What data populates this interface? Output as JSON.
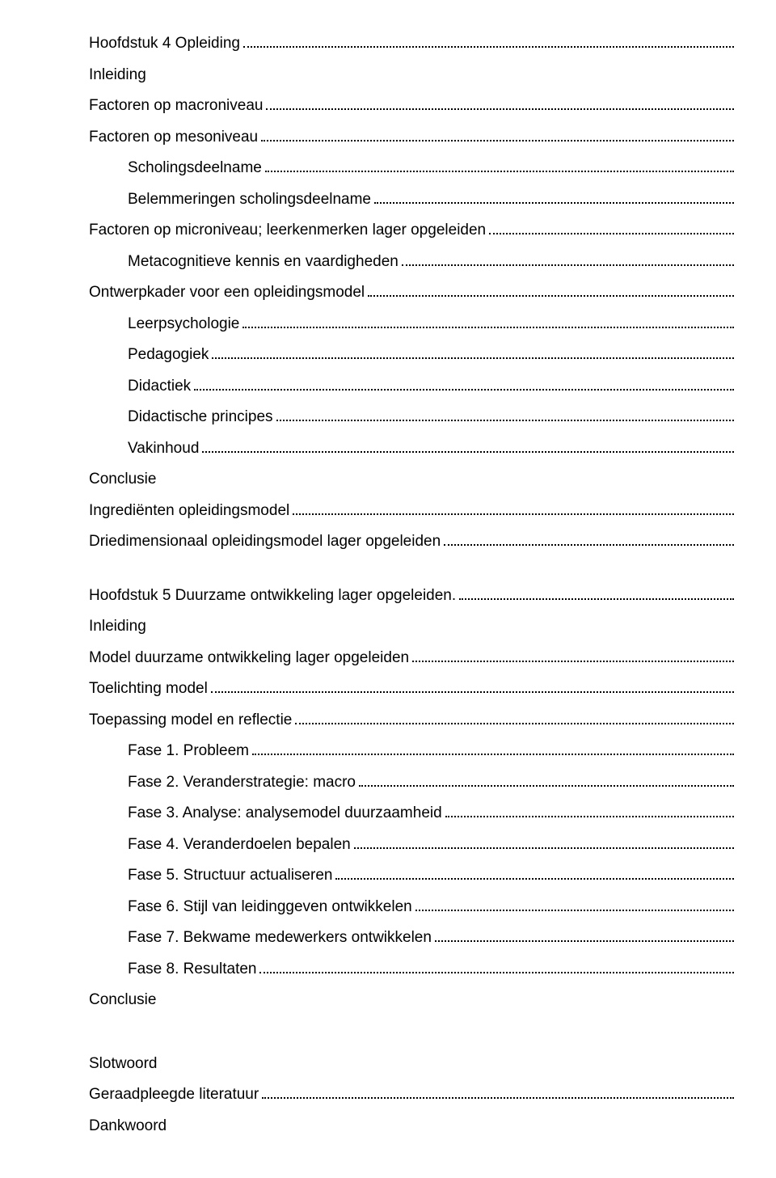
{
  "chapter4": {
    "title": "Hoofdstuk 4 Opleiding",
    "inleiding": "Inleiding",
    "macroniveau": "Factoren op macroniveau",
    "mesoniveau": "Factoren op mesoniveau",
    "scholingsdeelname": "Scholingsdeelname",
    "belemmeringen": "Belemmeringen scholingsdeelname",
    "microniveau": "Factoren op microniveau; leerkenmerken lager opgeleiden",
    "metacognitieve": "Metacognitieve kennis en vaardigheden",
    "ontwerpkader": "Ontwerpkader voor een opleidingsmodel",
    "leerpsychologie": "Leerpsychologie",
    "pedagogiek": "Pedagogiek",
    "didactiek": "Didactiek",
    "didactische_principes": "Didactische principes",
    "vakinhoud": "Vakinhoud",
    "conclusie": "Conclusie",
    "ingredienten": "Ingrediënten opleidingsmodel",
    "driedimensionaal": "Driedimensionaal opleidingsmodel lager opgeleiden"
  },
  "chapter5": {
    "title": "Hoofdstuk 5 Duurzame ontwikkeling lager opgeleiden. ",
    "inleiding": "Inleiding",
    "model_duurzame": "Model duurzame ontwikkeling lager opgeleiden",
    "toelichting": "Toelichting model",
    "toepassing": "Toepassing model en reflectie",
    "fase1": "Fase 1. Probleem",
    "fase2": "Fase 2. Veranderstrategie: macro",
    "fase3": "Fase 3. Analyse: analysemodel duurzaamheid",
    "fase4": "Fase 4. Veranderdoelen bepalen",
    "fase5": "Fase 5. Structuur actualiseren",
    "fase6": "Fase 6. Stijl van leidinggeven ontwikkelen",
    "fase7": "Fase 7. Bekwame medewerkers ontwikkelen",
    "fase8": "Fase 8. Resultaten",
    "conclusie": "Conclusie"
  },
  "end": {
    "slotwoord": "Slotwoord",
    "literatuur": "Geraadpleegde literatuur",
    "dankwoord": "Dankwoord"
  }
}
